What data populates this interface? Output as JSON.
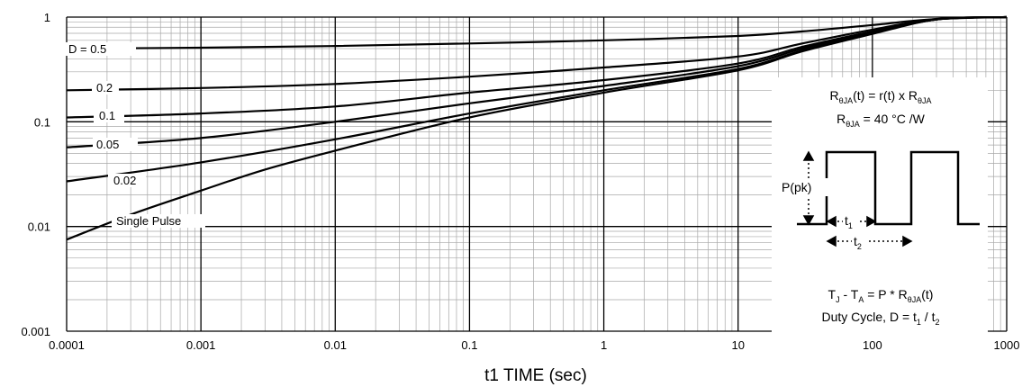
{
  "chart_data": {
    "type": "line",
    "x_scale": "log",
    "y_scale": "log",
    "xlim": [
      0.0001,
      1000
    ],
    "ylim": [
      0.001,
      1
    ],
    "grid": true,
    "xlabel": "t1 TIME (sec)",
    "ylabel": "",
    "x_tick_labels": [
      "0.0001",
      "0.001",
      "0.01",
      "0.1",
      "1",
      "10",
      "100",
      "1000"
    ],
    "y_tick_labels": [
      "1",
      "0.1",
      "0.01",
      "0.001"
    ],
    "series": [
      {
        "name": "D = 0.5",
        "x": [
          0.0001,
          0.001,
          0.01,
          0.1,
          1,
          10,
          30,
          100,
          300,
          1000
        ],
        "y": [
          0.5,
          0.51,
          0.53,
          0.56,
          0.6,
          0.66,
          0.73,
          0.84,
          0.96,
          1.0
        ]
      },
      {
        "name": "0.2",
        "x": [
          0.0001,
          0.001,
          0.01,
          0.1,
          1,
          10,
          30,
          100,
          300,
          1000
        ],
        "y": [
          0.2,
          0.21,
          0.23,
          0.27,
          0.33,
          0.42,
          0.56,
          0.76,
          0.96,
          1.0
        ]
      },
      {
        "name": "0.1",
        "x": [
          0.0001,
          0.001,
          0.01,
          0.1,
          1,
          10,
          30,
          100,
          300,
          1000
        ],
        "y": [
          0.11,
          0.12,
          0.14,
          0.19,
          0.25,
          0.36,
          0.52,
          0.73,
          0.95,
          1.0
        ]
      },
      {
        "name": "0.05",
        "x": [
          0.0001,
          0.001,
          0.01,
          0.1,
          1,
          10,
          30,
          100,
          300,
          1000
        ],
        "y": [
          0.057,
          0.07,
          0.1,
          0.15,
          0.22,
          0.34,
          0.5,
          0.72,
          0.95,
          1.0
        ]
      },
      {
        "name": "0.02",
        "x": [
          0.0001,
          0.001,
          0.01,
          0.1,
          1,
          10,
          30,
          100,
          300,
          1000
        ],
        "y": [
          0.027,
          0.041,
          0.068,
          0.12,
          0.2,
          0.32,
          0.48,
          0.7,
          0.95,
          1.0
        ]
      },
      {
        "name": "Single Pulse",
        "x": [
          0.0001,
          0.0003,
          0.001,
          0.003,
          0.01,
          0.1,
          1,
          10,
          30,
          100,
          300,
          1000
        ],
        "y": [
          0.0075,
          0.013,
          0.022,
          0.035,
          0.053,
          0.11,
          0.19,
          0.31,
          0.47,
          0.69,
          0.95,
          1.0
        ]
      }
    ],
    "annotations": {
      "line1_main": "R",
      "line1_sub": "θJA",
      "line1_mid": "(t) = r(t) x R",
      "line1_sub2": "θJA",
      "line2_main": "R",
      "line2_sub": "θJA",
      "line2_rest": " = 40 °C /W",
      "pulse_label": "P(pk)",
      "t1_main": "t",
      "t1_sub": "1",
      "t2_main": "t",
      "t2_sub": "2",
      "eq1_a": "T",
      "eq1_a_sub": "J",
      "eq1_b": " - T",
      "eq1_b_sub": "A",
      "eq1_c": " = P * R",
      "eq1_c_sub": "θJA",
      "eq1_d": "(t)",
      "eq2_a": "Duty Cycle, D = t",
      "eq2_a_sub": "1",
      "eq2_b": " / t",
      "eq2_b_sub": "2"
    }
  }
}
